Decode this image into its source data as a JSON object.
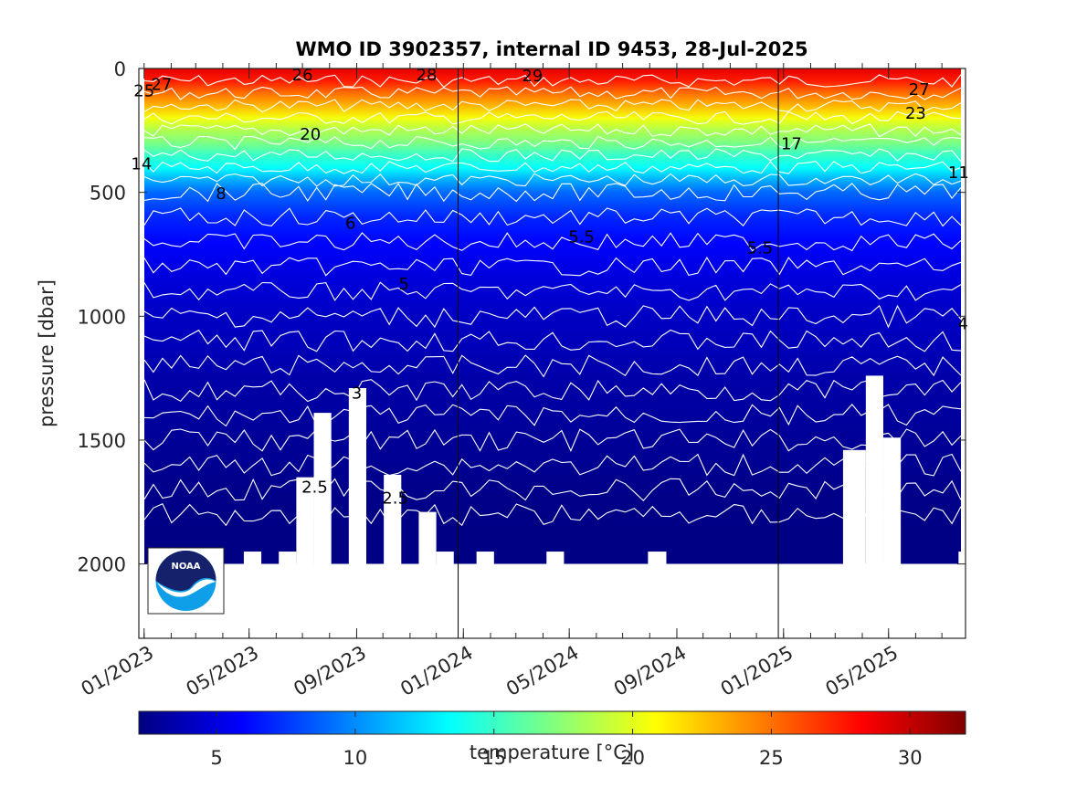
{
  "chart_data": {
    "type": "heatmap",
    "title": "WMO ID 3902357, internal ID 9453, 28-Jul-2025",
    "ylabel": "pressure [dbar]",
    "xlabel": "",
    "ylim": [
      0,
      2300
    ],
    "y_reversed": true,
    "y_ticks": [
      "0",
      "500",
      "1000",
      "1500",
      "2000"
    ],
    "y_tick_values": [
      0,
      500,
      1000,
      1500,
      2000
    ],
    "x_ticks": [
      "01/2023",
      "05/2023",
      "09/2023",
      "01/2024",
      "05/2024",
      "09/2024",
      "01/2025",
      "05/2025"
    ],
    "x_tick_dates": [
      "2023-01-01",
      "2023-05-01",
      "2023-09-01",
      "2024-01-01",
      "2024-05-01",
      "2024-09-01",
      "2025-01-01",
      "2025-05-01"
    ],
    "xlim": [
      "2022-12-26",
      "2025-07-28"
    ],
    "year_boundaries": [
      "2023-12-26",
      "2024-12-26"
    ],
    "colorbar": {
      "label": "temperature [°C]",
      "range": [
        2.2,
        32
      ],
      "ticks": [
        "5",
        "10",
        "15",
        "20",
        "25",
        "30"
      ],
      "tick_values": [
        5,
        10,
        15,
        20,
        25,
        30
      ],
      "colormap": "jet"
    },
    "temperature_profile": {
      "pressure_dbar": [
        0,
        50,
        100,
        150,
        200,
        250,
        300,
        350,
        400,
        450,
        500,
        600,
        700,
        800,
        900,
        1000,
        1100,
        1200,
        1300,
        1400,
        1500,
        1600,
        1700,
        1800,
        2000
      ],
      "temperature_c": [
        29,
        27.5,
        25,
        23,
        20.5,
        18.5,
        17,
        15,
        13.5,
        11,
        9,
        7,
        6,
        5.2,
        4.6,
        4.2,
        3.9,
        3.6,
        3.3,
        3.1,
        2.9,
        2.7,
        2.5,
        2.4,
        2.3
      ]
    },
    "contour_labels": [
      {
        "text": "25",
        "date": "2023-01-01",
        "pressure": 90
      },
      {
        "text": "27",
        "date": "2023-01-21",
        "pressure": 65
      },
      {
        "text": "26",
        "date": "2023-07-01",
        "pressure": 25
      },
      {
        "text": "28",
        "date": "2023-11-20",
        "pressure": 25
      },
      {
        "text": "29",
        "date": "2024-03-20",
        "pressure": 30
      },
      {
        "text": "27",
        "date": "2025-06-05",
        "pressure": 85
      },
      {
        "text": "23",
        "date": "2025-06-01",
        "pressure": 180
      },
      {
        "text": "20",
        "date": "2023-07-10",
        "pressure": 265
      },
      {
        "text": "17",
        "date": "2025-01-10",
        "pressure": 305
      },
      {
        "text": "14",
        "date": "2022-12-29",
        "pressure": 385
      },
      {
        "text": "11",
        "date": "2025-07-20",
        "pressure": 420
      },
      {
        "text": "8",
        "date": "2023-03-30",
        "pressure": 505
      },
      {
        "text": "6",
        "date": "2023-08-25",
        "pressure": 625
      },
      {
        "text": "5.5",
        "date": "2024-05-15",
        "pressure": 680
      },
      {
        "text": "5.5",
        "date": "2024-12-05",
        "pressure": 725
      },
      {
        "text": "5",
        "date": "2023-10-25",
        "pressure": 870
      },
      {
        "text": "4",
        "date": "2025-07-25",
        "pressure": 1030
      },
      {
        "text": "3",
        "date": "2023-09-01",
        "pressure": 1310
      },
      {
        "text": "2.5",
        "date": "2023-07-15",
        "pressure": 1690
      },
      {
        "text": "2.5",
        "date": "2023-10-15",
        "pressure": 1735
      }
    ],
    "data_gaps": [
      {
        "start": "2022-12-26",
        "end": "2022-12-30",
        "from_pressure": 2000
      },
      {
        "start": "2023-01-30",
        "end": "2023-02-20",
        "from_pressure": 2000
      },
      {
        "start": "2023-03-01",
        "end": "2023-04-25",
        "from_pressure": 2000
      },
      {
        "start": "2023-04-25",
        "end": "2023-05-15",
        "from_pressure": 1950
      },
      {
        "start": "2023-05-15",
        "end": "2023-06-04",
        "from_pressure": 2000
      },
      {
        "start": "2023-06-04",
        "end": "2023-06-24",
        "from_pressure": 1950
      },
      {
        "start": "2023-06-24",
        "end": "2023-07-14",
        "from_pressure": 1650
      },
      {
        "start": "2023-07-14",
        "end": "2023-08-03",
        "from_pressure": 1390
      },
      {
        "start": "2023-08-03",
        "end": "2023-08-23",
        "from_pressure": 2000
      },
      {
        "start": "2023-08-23",
        "end": "2023-09-12",
        "from_pressure": 1290
      },
      {
        "start": "2023-09-12",
        "end": "2023-10-02",
        "from_pressure": 2000
      },
      {
        "start": "2023-10-02",
        "end": "2023-10-22",
        "from_pressure": 1640
      },
      {
        "start": "2023-10-22",
        "end": "2023-11-11",
        "from_pressure": 2000
      },
      {
        "start": "2023-11-11",
        "end": "2023-12-01",
        "from_pressure": 1790
      },
      {
        "start": "2023-12-01",
        "end": "2023-12-21",
        "from_pressure": 1950
      },
      {
        "start": "2023-12-21",
        "end": "2024-01-10",
        "from_pressure": 2000
      },
      {
        "start": "2024-01-10",
        "end": "2024-01-16",
        "from_pressure": 2000
      },
      {
        "start": "2024-01-16",
        "end": "2024-02-05",
        "from_pressure": 1950
      },
      {
        "start": "2024-04-05",
        "end": "2024-04-25",
        "from_pressure": 1950
      },
      {
        "start": "2024-07-30",
        "end": "2024-08-20",
        "from_pressure": 1950
      },
      {
        "start": "2025-03-10",
        "end": "2025-04-05",
        "from_pressure": 1540
      },
      {
        "start": "2025-04-05",
        "end": "2025-04-25",
        "from_pressure": 1240
      },
      {
        "start": "2025-04-25",
        "end": "2025-05-15",
        "from_pressure": 1490
      },
      {
        "start": "2025-05-15",
        "end": "2025-07-20",
        "from_pressure": 2000
      },
      {
        "start": "2025-07-20",
        "end": "2025-07-28",
        "from_pressure": 1950
      }
    ],
    "grid": false
  },
  "logo": {
    "text": "NOAA"
  }
}
